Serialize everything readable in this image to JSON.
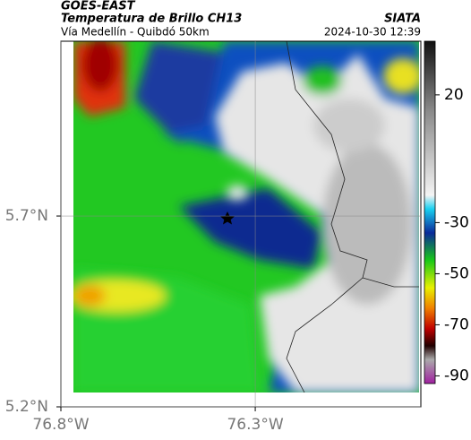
{
  "header": {
    "source": "GOES-EAST",
    "product": "Temperatura de Brillo CH13",
    "organization": "SIATA",
    "route": "Vía Medellín - Quibdó 50km",
    "timestamp": "2024-10-30 12:39"
  },
  "map": {
    "lon_range": [
      -76.8,
      -75.874
    ],
    "lat_range": [
      5.2,
      6.158
    ],
    "lat_ticks": [
      {
        "value": 5.7,
        "label": "5.7°N"
      },
      {
        "value": 5.2,
        "label": "5.2°N"
      }
    ],
    "lon_ticks": [
      {
        "value": -76.8,
        "label": "76.8°W"
      },
      {
        "value": -76.3,
        "label": "76.3°W"
      }
    ]
  },
  "colorbar": {
    "range": [
      -93,
      41
    ],
    "ticks": [
      20,
      -30,
      -50,
      -70,
      -90
    ]
  }
}
